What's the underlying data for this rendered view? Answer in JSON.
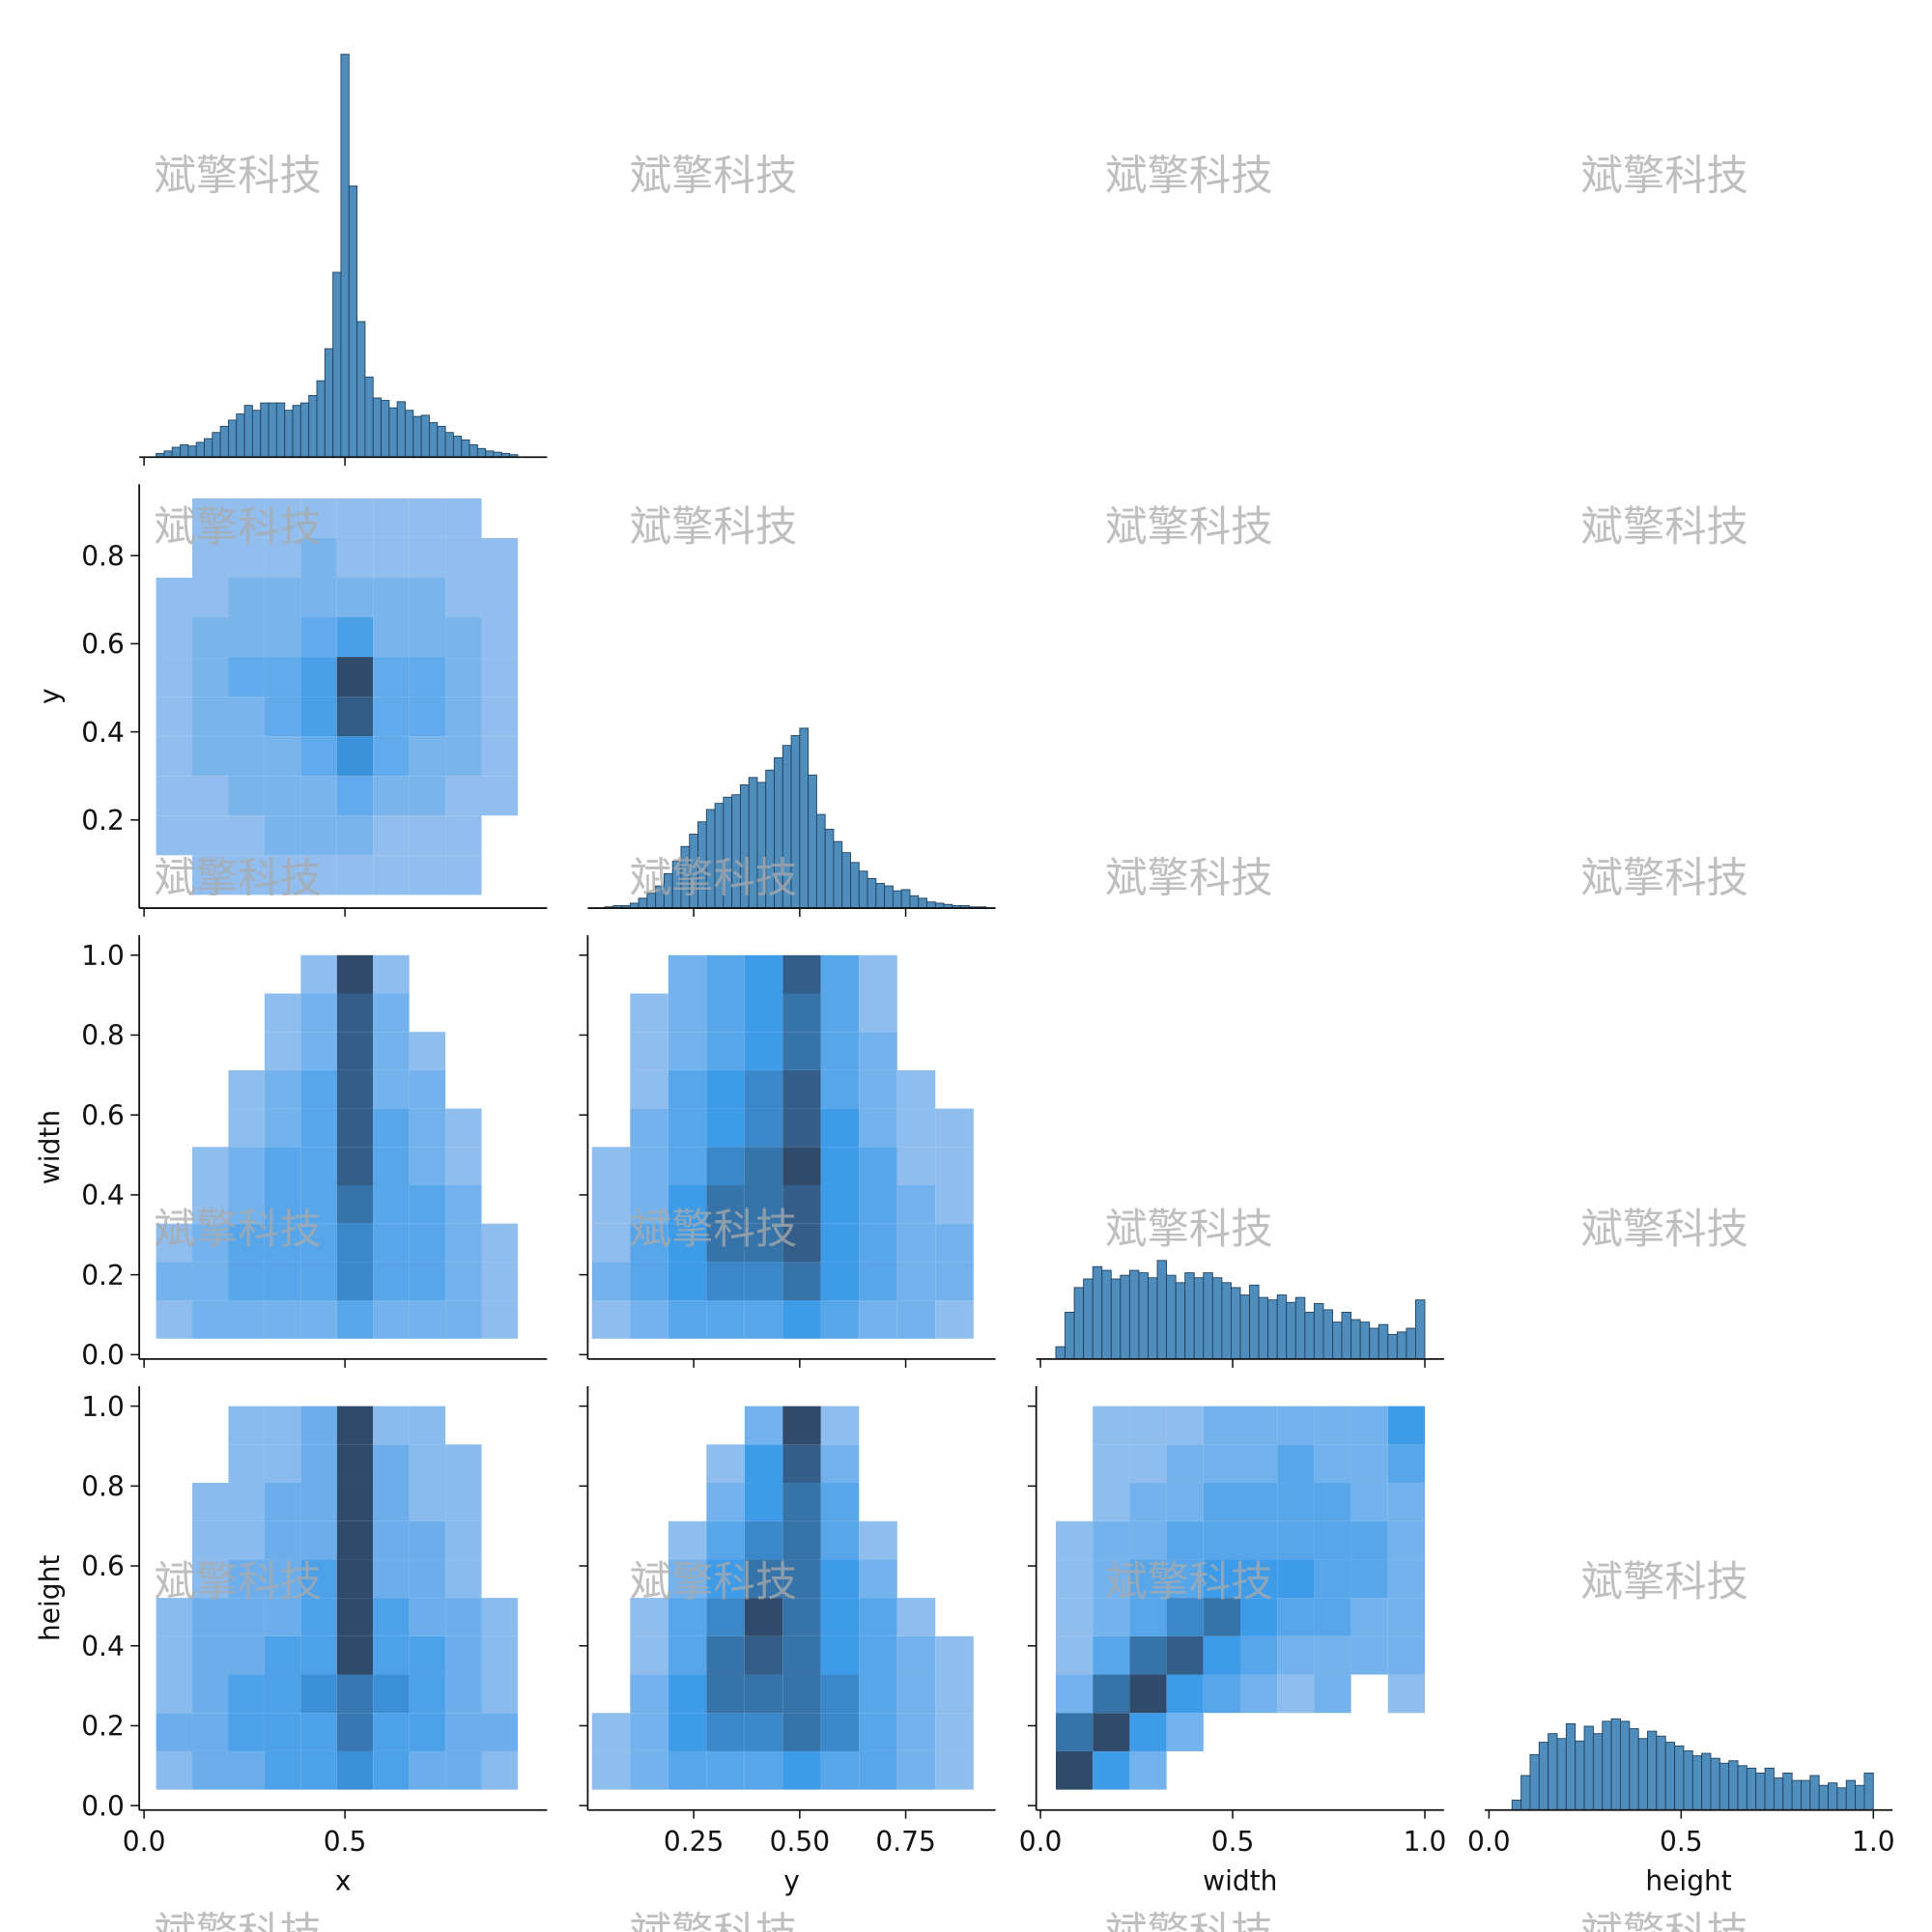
{
  "watermark": "斌擎科技",
  "cmap": [
    "#a9c8f0",
    "#3d9be8",
    "#2f4a6a"
  ],
  "chart_data": [
    {
      "type": "histogram",
      "color": "#4f8dbd",
      "xlim": [
        -0.012,
        1.003
      ],
      "xticks": [
        0,
        0.5
      ],
      "ylim": [
        0,
        344
      ],
      "bins": [
        0.03,
        0.05,
        0.07,
        0.09,
        0.11,
        0.13,
        0.15,
        0.17,
        0.19,
        0.21,
        0.23,
        0.25,
        0.27,
        0.29,
        0.31,
        0.33,
        0.35,
        0.37,
        0.39,
        0.41,
        0.43,
        0.45,
        0.47,
        0.49,
        0.51,
        0.53,
        0.55,
        0.57,
        0.59,
        0.61,
        0.63,
        0.65,
        0.67,
        0.69,
        0.71,
        0.73,
        0.75,
        0.77,
        0.79,
        0.81,
        0.83,
        0.85,
        0.87,
        0.89,
        0.91,
        0.93
      ],
      "counts": [
        3,
        5,
        8,
        10,
        9,
        12,
        15,
        20,
        25,
        30,
        35,
        42,
        38,
        44,
        44,
        44,
        38,
        42,
        44,
        50,
        62,
        88,
        150,
        327,
        220,
        110,
        65,
        48,
        46,
        40,
        45,
        38,
        33,
        34,
        28,
        25,
        20,
        17,
        14,
        10,
        7,
        5,
        4,
        3,
        2
      ]
    },
    {
      "type": "heatmap",
      "xlim": [
        -0.012,
        1.003
      ],
      "xticks": [
        0,
        0.5
      ],
      "ylim": [
        0,
        0.962
      ],
      "yticks": [
        0.2,
        0.4,
        0.6,
        0.8
      ],
      "ylabel": "y",
      "xbins": [
        0.03,
        0.12,
        0.21,
        0.3,
        0.39,
        0.48,
        0.57,
        0.66,
        0.75,
        0.84,
        0.93
      ],
      "ybins": [
        0.03,
        0.12,
        0.21,
        0.3,
        0.39,
        0.48,
        0.57,
        0.66,
        0.75,
        0.84,
        0.93
      ],
      "counts": [
        [
          0,
          1,
          1,
          1,
          1,
          1,
          1,
          1,
          1,
          0
        ],
        [
          1,
          1,
          1,
          2,
          2,
          2,
          1,
          1,
          1,
          0
        ],
        [
          1,
          1,
          2,
          2,
          2,
          3,
          2,
          2,
          1,
          1
        ],
        [
          1,
          2,
          2,
          2,
          3,
          5,
          3,
          2,
          2,
          1
        ],
        [
          1,
          2,
          2,
          3,
          4,
          8,
          3,
          3,
          2,
          1
        ],
        [
          1,
          2,
          3,
          3,
          4,
          9,
          3,
          3,
          2,
          1
        ],
        [
          1,
          2,
          2,
          2,
          3,
          4,
          2,
          2,
          2,
          1
        ],
        [
          1,
          1,
          2,
          2,
          2,
          2,
          2,
          2,
          1,
          1
        ],
        [
          0,
          1,
          1,
          1,
          2,
          1,
          1,
          1,
          1,
          1
        ],
        [
          0,
          1,
          1,
          1,
          1,
          1,
          1,
          1,
          1,
          0
        ]
      ]
    },
    {
      "type": "histogram",
      "color": "#4f8dbd",
      "xlim": [
        0,
        0.962
      ],
      "xticks": [
        0.25,
        0.5,
        0.75
      ],
      "ylim": [
        0,
        344
      ],
      "bins": [
        0.04,
        0.06,
        0.08,
        0.1,
        0.12,
        0.14,
        0.16,
        0.18,
        0.2,
        0.22,
        0.24,
        0.26,
        0.28,
        0.3,
        0.32,
        0.34,
        0.36,
        0.38,
        0.4,
        0.42,
        0.44,
        0.46,
        0.48,
        0.5,
        0.52,
        0.54,
        0.56,
        0.58,
        0.6,
        0.62,
        0.64,
        0.66,
        0.68,
        0.7,
        0.72,
        0.74,
        0.76,
        0.78,
        0.8,
        0.82,
        0.84,
        0.86,
        0.88,
        0.9,
        0.92,
        0.94
      ],
      "counts": [
        1,
        2,
        2,
        4,
        8,
        12,
        18,
        28,
        38,
        50,
        60,
        70,
        80,
        85,
        90,
        92,
        100,
        106,
        102,
        112,
        122,
        132,
        140,
        146,
        108,
        76,
        64,
        54,
        45,
        37,
        30,
        24,
        20,
        18,
        14,
        15,
        10,
        8,
        5,
        4,
        3,
        2,
        2,
        1,
        1
      ]
    },
    {
      "type": "heatmap",
      "xlim": [
        -0.012,
        1.003
      ],
      "xticks": [
        0,
        0.5
      ],
      "ylim": [
        -0.011,
        1.05
      ],
      "yticks": [
        {
          "value": 0,
          "label": "0.0"
        },
        0.2,
        0.4,
        0.6,
        0.8,
        {
          "value": 1,
          "label": "1.0"
        }
      ],
      "ylabel": "width",
      "xbins": [
        0.03,
        0.12,
        0.21,
        0.3,
        0.39,
        0.48,
        0.57,
        0.66,
        0.75,
        0.84,
        0.93
      ],
      "ybins": [
        0.04,
        0.136,
        0.232,
        0.328,
        0.424,
        0.52,
        0.616,
        0.712,
        0.808,
        0.904,
        1.0
      ],
      "counts": [
        [
          1,
          2,
          2,
          2,
          2,
          3,
          2,
          2,
          2,
          1
        ],
        [
          2,
          2,
          3,
          3,
          3,
          5,
          3,
          3,
          2,
          1
        ],
        [
          1,
          2,
          3,
          3,
          3,
          5,
          3,
          3,
          2,
          1
        ],
        [
          0,
          1,
          2,
          3,
          3,
          6,
          3,
          3,
          2,
          0
        ],
        [
          0,
          1,
          2,
          3,
          3,
          7,
          3,
          2,
          1,
          0
        ],
        [
          0,
          0,
          1,
          2,
          3,
          7,
          3,
          2,
          1,
          0
        ],
        [
          0,
          0,
          1,
          2,
          3,
          7,
          2,
          2,
          0,
          0
        ],
        [
          0,
          0,
          0,
          1,
          2,
          7,
          2,
          1,
          0,
          0
        ],
        [
          0,
          0,
          0,
          1,
          2,
          7,
          2,
          0,
          0,
          0
        ],
        [
          0,
          0,
          0,
          0,
          1,
          8,
          1,
          0,
          0,
          0
        ]
      ]
    },
    {
      "type": "heatmap",
      "xlim": [
        0,
        0.962
      ],
      "xticks": [
        0.25,
        0.5,
        0.75
      ],
      "ylim": [
        -0.011,
        1.05
      ],
      "yticks": [
        0,
        0.2,
        0.4,
        0.6,
        0.8,
        1
      ],
      "xbins": [
        0.01,
        0.1,
        0.19,
        0.28,
        0.37,
        0.46,
        0.55,
        0.64,
        0.73,
        0.82,
        0.91
      ],
      "ybins": [
        0.04,
        0.136,
        0.232,
        0.328,
        0.424,
        0.52,
        0.616,
        0.712,
        0.808,
        0.904,
        1.0
      ],
      "counts": [
        [
          1,
          2,
          3,
          3,
          3,
          4,
          3,
          2,
          2,
          1
        ],
        [
          2,
          3,
          4,
          5,
          5,
          6,
          4,
          3,
          2,
          2
        ],
        [
          1,
          3,
          4,
          6,
          6,
          7,
          4,
          3,
          2,
          2
        ],
        [
          1,
          2,
          4,
          6,
          6,
          7,
          4,
          3,
          2,
          1
        ],
        [
          1,
          2,
          3,
          5,
          6,
          8,
          4,
          3,
          1,
          1
        ],
        [
          0,
          2,
          3,
          4,
          5,
          7,
          4,
          2,
          1,
          1
        ],
        [
          0,
          1,
          3,
          4,
          5,
          7,
          3,
          2,
          1,
          0
        ],
        [
          0,
          1,
          2,
          3,
          4,
          6,
          3,
          2,
          0,
          0
        ],
        [
          0,
          1,
          2,
          3,
          4,
          6,
          3,
          1,
          0,
          0
        ],
        [
          0,
          0,
          2,
          3,
          4,
          7,
          3,
          1,
          0,
          0
        ]
      ]
    },
    {
      "type": "histogram",
      "color": "#4f8dbd",
      "xlim": [
        -0.011,
        1.05
      ],
      "xticks": [
        0,
        0.5,
        1
      ],
      "ylim": [
        0,
        344
      ],
      "bins": [
        0.04,
        0.064,
        0.088,
        0.112,
        0.136,
        0.16,
        0.184,
        0.208,
        0.232,
        0.256,
        0.28,
        0.304,
        0.328,
        0.352,
        0.376,
        0.4,
        0.424,
        0.448,
        0.472,
        0.496,
        0.52,
        0.544,
        0.568,
        0.592,
        0.616,
        0.64,
        0.664,
        0.688,
        0.712,
        0.736,
        0.76,
        0.784,
        0.808,
        0.832,
        0.856,
        0.88,
        0.904,
        0.928,
        0.952,
        0.976,
        1.0
      ],
      "counts": [
        10,
        38,
        58,
        65,
        75,
        72,
        65,
        68,
        72,
        70,
        66,
        80,
        68,
        62,
        70,
        66,
        70,
        66,
        62,
        58,
        52,
        60,
        50,
        48,
        52,
        46,
        50,
        38,
        45,
        40,
        30,
        38,
        32,
        30,
        25,
        28,
        20,
        22,
        25,
        48
      ]
    },
    {
      "type": "heatmap",
      "xlim": [
        -0.012,
        1.003
      ],
      "xticks": [
        {
          "value": 0,
          "label": "0.0"
        },
        0.5
      ],
      "xlabel": "x",
      "ylim": [
        -0.011,
        1.05
      ],
      "yticks": [
        {
          "value": 0,
          "label": "0.0"
        },
        0.2,
        0.4,
        0.6,
        0.8,
        {
          "value": 1,
          "label": "1.0"
        }
      ],
      "ylabel": "height",
      "xbins": [
        0.03,
        0.12,
        0.21,
        0.3,
        0.39,
        0.48,
        0.57,
        0.66,
        0.75,
        0.84,
        0.93
      ],
      "ybins": [
        0.04,
        0.136,
        0.232,
        0.328,
        0.424,
        0.52,
        0.616,
        0.712,
        0.808,
        0.904,
        1.0
      ],
      "counts": [
        [
          1,
          2,
          2,
          3,
          3,
          4,
          3,
          2,
          2,
          1
        ],
        [
          2,
          2,
          3,
          3,
          3,
          5,
          3,
          3,
          2,
          2
        ],
        [
          1,
          2,
          3,
          3,
          4,
          5,
          4,
          3,
          2,
          1
        ],
        [
          1,
          2,
          2,
          3,
          3,
          7,
          3,
          3,
          2,
          1
        ],
        [
          1,
          2,
          2,
          2,
          3,
          7,
          3,
          2,
          2,
          1
        ],
        [
          0,
          1,
          2,
          2,
          3,
          7,
          2,
          2,
          1,
          0
        ],
        [
          0,
          1,
          1,
          2,
          2,
          7,
          2,
          2,
          1,
          0
        ],
        [
          0,
          1,
          1,
          2,
          2,
          7,
          2,
          1,
          1,
          0
        ],
        [
          0,
          0,
          1,
          1,
          2,
          7,
          2,
          1,
          1,
          0
        ],
        [
          0,
          0,
          1,
          1,
          2,
          7,
          1,
          1,
          0,
          0
        ]
      ]
    },
    {
      "type": "heatmap",
      "xlim": [
        0,
        0.962
      ],
      "xticks": [
        0.25,
        {
          "value": 0.5,
          "label": "0.50"
        },
        0.75
      ],
      "xlabel": "y",
      "ylim": [
        -0.011,
        1.05
      ],
      "yticks": [
        0,
        0.2,
        0.4,
        0.6,
        0.8,
        1
      ],
      "xbins": [
        0.01,
        0.1,
        0.19,
        0.28,
        0.37,
        0.46,
        0.55,
        0.64,
        0.73,
        0.82,
        0.91
      ],
      "ybins": [
        0.04,
        0.136,
        0.232,
        0.328,
        0.424,
        0.52,
        0.616,
        0.712,
        0.808,
        0.904,
        1.0
      ],
      "counts": [
        [
          1,
          2,
          3,
          3,
          3,
          4,
          3,
          3,
          2,
          1
        ],
        [
          1,
          2,
          4,
          5,
          5,
          6,
          5,
          3,
          2,
          1
        ],
        [
          0,
          2,
          4,
          6,
          6,
          6,
          5,
          3,
          2,
          1
        ],
        [
          0,
          1,
          3,
          6,
          7,
          6,
          4,
          3,
          2,
          1
        ],
        [
          0,
          1,
          3,
          5,
          8,
          6,
          4,
          3,
          1,
          0
        ],
        [
          0,
          0,
          2,
          4,
          6,
          6,
          4,
          2,
          0,
          0
        ],
        [
          0,
          0,
          1,
          3,
          5,
          6,
          3,
          1,
          0,
          0
        ],
        [
          0,
          0,
          0,
          2,
          4,
          6,
          3,
          0,
          0,
          0
        ],
        [
          0,
          0,
          0,
          1,
          4,
          7,
          2,
          0,
          0,
          0
        ],
        [
          0,
          0,
          0,
          0,
          2,
          8,
          1,
          0,
          0,
          0
        ]
      ]
    },
    {
      "type": "heatmap",
      "xlim": [
        -0.011,
        1.05
      ],
      "xticks": [
        {
          "value": 0,
          "label": "0.0"
        },
        0.5,
        {
          "value": 1,
          "label": "1.0"
        }
      ],
      "xlabel": "width",
      "ylim": [
        -0.011,
        1.05
      ],
      "yticks": [
        0,
        0.2,
        0.4,
        0.6,
        0.8,
        1
      ],
      "xbins": [
        0.04,
        0.136,
        0.232,
        0.328,
        0.424,
        0.52,
        0.616,
        0.712,
        0.808,
        0.904,
        1.0
      ],
      "ybins": [
        0.04,
        0.136,
        0.232,
        0.328,
        0.424,
        0.52,
        0.616,
        0.712,
        0.808,
        0.904,
        1.0
      ],
      "counts": [
        [
          8,
          4,
          2,
          0,
          0,
          0,
          0,
          0,
          0,
          0
        ],
        [
          6,
          8,
          4,
          2,
          0,
          0,
          0,
          0,
          0,
          0
        ],
        [
          2,
          6,
          8,
          4,
          3,
          2,
          1,
          2,
          0,
          1
        ],
        [
          1,
          3,
          6,
          7,
          4,
          3,
          2,
          2,
          2,
          2
        ],
        [
          1,
          2,
          3,
          5,
          6,
          4,
          3,
          3,
          2,
          2
        ],
        [
          1,
          2,
          3,
          3,
          4,
          4,
          4,
          3,
          3,
          2
        ],
        [
          1,
          2,
          2,
          3,
          3,
          3,
          3,
          3,
          3,
          2
        ],
        [
          0,
          1,
          2,
          2,
          3,
          3,
          3,
          3,
          2,
          2
        ],
        [
          0,
          1,
          1,
          2,
          2,
          2,
          3,
          2,
          2,
          3
        ],
        [
          0,
          1,
          1,
          1,
          2,
          2,
          2,
          2,
          2,
          4
        ]
      ]
    },
    {
      "type": "histogram",
      "color": "#4f8dbd",
      "xlim": [
        -0.011,
        1.05
      ],
      "xticks": [
        {
          "value": 0,
          "label": "0.0"
        },
        0.5,
        {
          "value": 1,
          "label": "1.0"
        }
      ],
      "xlabel": "height",
      "ylim": [
        0,
        344
      ],
      "bins": [
        0.06,
        0.0835,
        0.107,
        0.1305,
        0.154,
        0.1775,
        0.201,
        0.2245,
        0.248,
        0.2715,
        0.295,
        0.3185,
        0.342,
        0.3655,
        0.389,
        0.4125,
        0.436,
        0.4595,
        0.483,
        0.5065,
        0.53,
        0.5535,
        0.577,
        0.6005,
        0.624,
        0.6475,
        0.671,
        0.6945,
        0.718,
        0.7415,
        0.765,
        0.7885,
        0.812,
        0.8355,
        0.859,
        0.8825,
        0.906,
        0.9295,
        0.953,
        0.9765,
        1.0
      ],
      "counts": [
        8,
        28,
        45,
        55,
        62,
        58,
        70,
        56,
        68,
        62,
        72,
        74,
        72,
        66,
        58,
        64,
        60,
        55,
        52,
        48,
        44,
        46,
        42,
        38,
        40,
        36,
        34,
        30,
        34,
        26,
        30,
        24,
        24,
        28,
        20,
        22,
        18,
        24,
        20,
        30
      ]
    }
  ]
}
